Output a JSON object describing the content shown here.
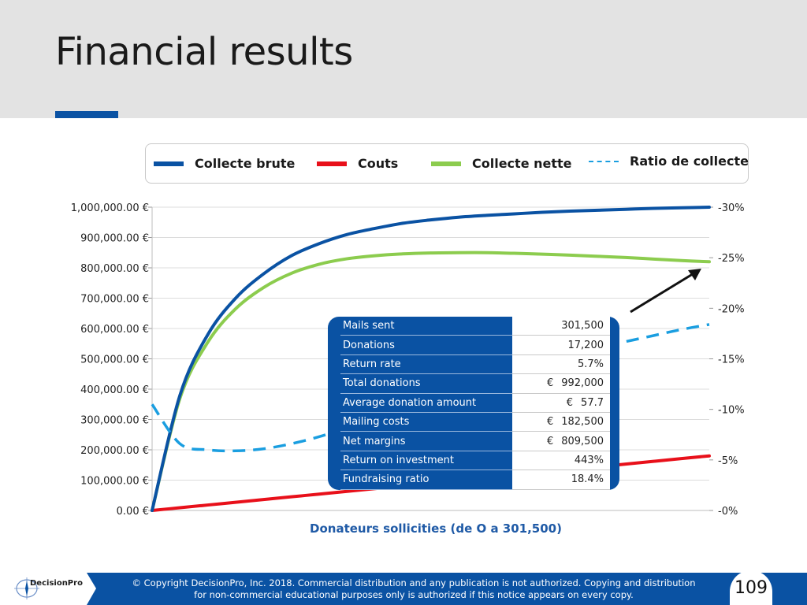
{
  "slide": {
    "title": "Financial results",
    "page_number": "109",
    "copyright_line1": "© Copyright DecisionPro, Inc.  2018. Commercial distribution and any publication is not authorized. Copying and distribution",
    "copyright_line2": "for non-commercial educational purposes only is authorized if this notice appears on every copy.",
    "logo_text": "DecisionPro",
    "accent_color": "#0a52a3"
  },
  "legend": [
    {
      "label": "Collecte brute",
      "color": "#0a52a3",
      "style": "solid"
    },
    {
      "label": "Couts",
      "color": "#e8101a",
      "style": "solid"
    },
    {
      "label": "Collecte nette",
      "color": "#8ccc4e",
      "style": "solid"
    },
    {
      "label": "Ratio de collecte",
      "color": "#1a9ee0",
      "style": "dashed"
    }
  ],
  "chart_data": {
    "type": "line",
    "xlabel": "Donateurs sollicities (de O a 301,500)",
    "x": [
      0,
      0.05,
      0.1,
      0.15,
      0.2,
      0.25,
      0.3,
      0.35,
      0.4,
      0.45,
      0.5,
      0.55,
      0.6,
      0.65,
      0.7,
      0.75,
      0.8,
      0.85,
      0.9,
      0.95,
      1.0
    ],
    "ylim": [
      0,
      1000000
    ],
    "y_ticks": [
      "0.00 €",
      "100,000.00 €",
      "200,000.00 €",
      "300,000.00 €",
      "400,000.00 €",
      "500,000.00 €",
      "600,000.00 €",
      "700,000.00 €",
      "800,000.00 €",
      "900,000.00 €",
      "1,000,000.00 €"
    ],
    "y2lim": [
      0,
      30
    ],
    "y2_ticks": [
      "-0%",
      "-5%",
      "-10%",
      "-15%",
      "-20%",
      "-25%",
      "-30%"
    ],
    "grid": true,
    "series": [
      {
        "name": "Collecte brute",
        "axis": "left",
        "color": "#0a52a3",
        "values": [
          0,
          380000,
          580000,
          700000,
          780000,
          840000,
          880000,
          910000,
          930000,
          947000,
          958000,
          967000,
          973000,
          978000,
          983000,
          987000,
          990000,
          993000,
          996000,
          998000,
          1000000
        ]
      },
      {
        "name": "Couts",
        "axis": "left",
        "color": "#e8101a",
        "values": [
          0,
          9000,
          18000,
          27000,
          36000,
          45000,
          54000,
          63000,
          72000,
          81000,
          90000,
          99000,
          108000,
          117000,
          126000,
          135000,
          144000,
          153000,
          162000,
          171000,
          180000
        ]
      },
      {
        "name": "Collecte nette",
        "axis": "left",
        "color": "#8ccc4e",
        "values": [
          0,
          370000,
          555000,
          665000,
          735000,
          782000,
          812000,
          830000,
          840000,
          846000,
          849000,
          850000,
          850000,
          848000,
          845000,
          842000,
          838000,
          834000,
          829000,
          824000,
          820000
        ]
      },
      {
        "name": "Ratio de collecte",
        "axis": "right",
        "color": "#1a9ee0",
        "dashed": true,
        "values": [
          10.5,
          6.6,
          6.0,
          5.9,
          6.1,
          6.6,
          7.3,
          8.2,
          9.1,
          10.1,
          11.1,
          12.0,
          12.9,
          13.7,
          14.5,
          15.3,
          16.0,
          16.7,
          17.3,
          17.9,
          18.4
        ]
      }
    ]
  },
  "summary_table": {
    "rows": [
      {
        "label": "Mails sent",
        "currency": "",
        "value": "301,500"
      },
      {
        "label": "Donations",
        "currency": "",
        "value": "17,200"
      },
      {
        "label": "Return rate",
        "currency": "",
        "value": "5.7%"
      },
      {
        "label": "Total donations",
        "currency": "€",
        "value": "992,000"
      },
      {
        "label": "Average donation amount",
        "currency": "€",
        "value": "57.7"
      },
      {
        "label": "Mailing costs",
        "currency": "€",
        "value": "182,500"
      },
      {
        "label": "Net margins",
        "currency": "€",
        "value": "809,500"
      },
      {
        "label": "Return on investment",
        "currency": "",
        "value": "443%"
      },
      {
        "label": "Fundraising ratio",
        "currency": "",
        "value": "18.4%"
      }
    ]
  }
}
